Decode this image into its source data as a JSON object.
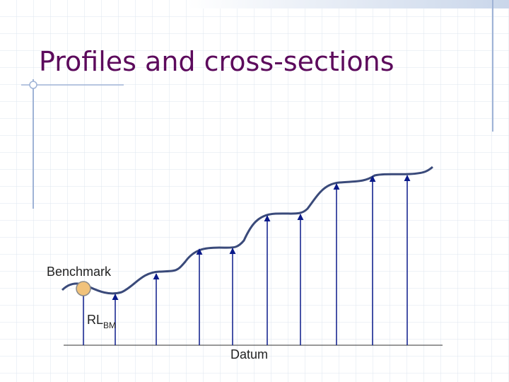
{
  "title": "Profiles and cross-sections",
  "labels": {
    "benchmark": "Benchmark",
    "rl": "RL",
    "rl_sub": "BM",
    "datum": "Datum"
  }
}
